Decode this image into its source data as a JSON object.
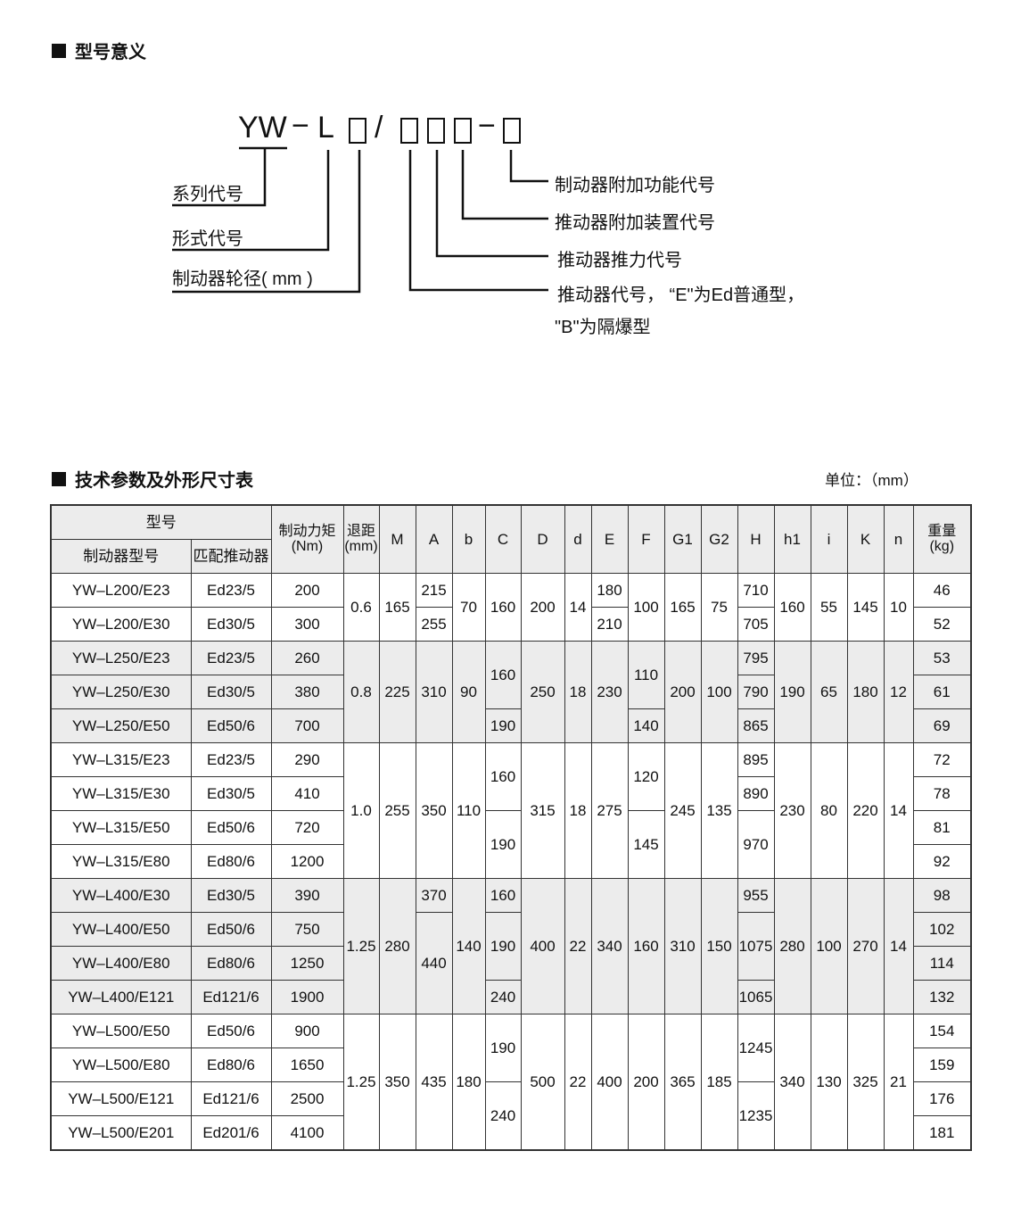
{
  "section1": {
    "title": "型号意义"
  },
  "diagram": {
    "code": {
      "series": "YW",
      "dash1": "−",
      "form": "L",
      "slash": "/",
      "dash2": "−"
    },
    "left_labels": [
      "系列代号",
      "形式代号",
      "制动器轮径( mm )"
    ],
    "right_labels": [
      "制动器附加功能代号",
      "推动器附加装置代号",
      "推动器推力代号",
      "推动器代号， “E\"为Ed普通型，",
      "\"B\"为隔爆型"
    ]
  },
  "section2": {
    "title": "技术参数及外形尺寸表",
    "unit": "单位：（mm）"
  },
  "table": {
    "header": {
      "model_group": "型号",
      "brake_model": "制动器型号",
      "actuator": "匹配推动器",
      "torque": "制动力矩\n(Nm)",
      "stroke": "退距\n(mm)",
      "M": "M",
      "A": "A",
      "b": "b",
      "C": "C",
      "D": "D",
      "d": "d",
      "E": "E",
      "F": "F",
      "G1": "G1",
      "G2": "G2",
      "H": "H",
      "h1": "h1",
      "i": "i",
      "K": "K",
      "n": "n",
      "weight": "重量\n(kg)"
    },
    "merged_columns": [
      "stroke",
      "M",
      "A",
      "b",
      "C",
      "D",
      "d",
      "E",
      "F",
      "G1",
      "G2",
      "H",
      "h1",
      "i",
      "K",
      "n"
    ],
    "groups": [
      {
        "rows": [
          {
            "model": "YW–L200/E23",
            "actuator": "Ed23/5",
            "torque": "200",
            "weight": "46"
          },
          {
            "model": "YW–L200/E30",
            "actuator": "Ed30/5",
            "torque": "300",
            "weight": "52"
          }
        ],
        "cells": {
          "stroke": [
            [
              "0.6",
              2
            ]
          ],
          "M": [
            [
              "165",
              2
            ]
          ],
          "A": [
            [
              "215",
              1
            ],
            [
              "255",
              1
            ]
          ],
          "b": [
            [
              "70",
              2
            ]
          ],
          "C": [
            [
              "160",
              2
            ]
          ],
          "D": [
            [
              "200",
              2
            ]
          ],
          "d": [
            [
              "14",
              2
            ]
          ],
          "E": [
            [
              "180",
              1
            ],
            [
              "210",
              1
            ]
          ],
          "F": [
            [
              "100",
              2
            ]
          ],
          "G1": [
            [
              "165",
              2
            ]
          ],
          "G2": [
            [
              "75",
              2
            ]
          ],
          "H": [
            [
              "710",
              1
            ],
            [
              "705",
              1
            ]
          ],
          "h1": [
            [
              "160",
              2
            ]
          ],
          "i": [
            [
              "55",
              2
            ]
          ],
          "K": [
            [
              "145",
              2
            ]
          ],
          "n": [
            [
              "10",
              2
            ]
          ]
        }
      },
      {
        "rows": [
          {
            "model": "YW–L250/E23",
            "actuator": "Ed23/5",
            "torque": "260",
            "weight": "53"
          },
          {
            "model": "YW–L250/E30",
            "actuator": "Ed30/5",
            "torque": "380",
            "weight": "61"
          },
          {
            "model": "YW–L250/E50",
            "actuator": "Ed50/6",
            "torque": "700",
            "weight": "69"
          }
        ],
        "cells": {
          "stroke": [
            [
              "0.8",
              3
            ]
          ],
          "M": [
            [
              "225",
              3
            ]
          ],
          "A": [
            [
              "310",
              3
            ]
          ],
          "b": [
            [
              "90",
              3
            ]
          ],
          "C": [
            [
              "160",
              2
            ],
            [
              "190",
              1
            ]
          ],
          "D": [
            [
              "250",
              3
            ]
          ],
          "d": [
            [
              "18",
              3
            ]
          ],
          "E": [
            [
              "230",
              3
            ]
          ],
          "F": [
            [
              "110",
              2
            ],
            [
              "140",
              1
            ]
          ],
          "G1": [
            [
              "200",
              3
            ]
          ],
          "G2": [
            [
              "100",
              3
            ]
          ],
          "H": [
            [
              "795",
              1
            ],
            [
              "790",
              1
            ],
            [
              "865",
              1
            ]
          ],
          "h1": [
            [
              "190",
              3
            ]
          ],
          "i": [
            [
              "65",
              3
            ]
          ],
          "K": [
            [
              "180",
              3
            ]
          ],
          "n": [
            [
              "12",
              3
            ]
          ]
        }
      },
      {
        "rows": [
          {
            "model": "YW–L315/E23",
            "actuator": "Ed23/5",
            "torque": "290",
            "weight": "72"
          },
          {
            "model": "YW–L315/E30",
            "actuator": "Ed30/5",
            "torque": "410",
            "weight": "78"
          },
          {
            "model": "YW–L315/E50",
            "actuator": "Ed50/6",
            "torque": "720",
            "weight": "81"
          },
          {
            "model": "YW–L315/E80",
            "actuator": "Ed80/6",
            "torque": "1200",
            "weight": "92"
          }
        ],
        "cells": {
          "stroke": [
            [
              "1.0",
              4
            ]
          ],
          "M": [
            [
              "255",
              4
            ]
          ],
          "A": [
            [
              "350",
              4
            ]
          ],
          "b": [
            [
              "110",
              4
            ]
          ],
          "C": [
            [
              "160",
              2
            ],
            [
              "190",
              2
            ]
          ],
          "D": [
            [
              "315",
              4
            ]
          ],
          "d": [
            [
              "18",
              4
            ]
          ],
          "E": [
            [
              "275",
              4
            ]
          ],
          "F": [
            [
              "120",
              2
            ],
            [
              "145",
              2
            ]
          ],
          "G1": [
            [
              "245",
              4
            ]
          ],
          "G2": [
            [
              "135",
              4
            ]
          ],
          "H": [
            [
              "895",
              1
            ],
            [
              "890",
              1
            ],
            [
              "970",
              2
            ]
          ],
          "h1": [
            [
              "230",
              4
            ]
          ],
          "i": [
            [
              "80",
              4
            ]
          ],
          "K": [
            [
              "220",
              4
            ]
          ],
          "n": [
            [
              "14",
              4
            ]
          ]
        }
      },
      {
        "rows": [
          {
            "model": "YW–L400/E30",
            "actuator": "Ed30/5",
            "torque": "390",
            "weight": "98"
          },
          {
            "model": "YW–L400/E50",
            "actuator": "Ed50/6",
            "torque": "750",
            "weight": "102"
          },
          {
            "model": "YW–L400/E80",
            "actuator": "Ed80/6",
            "torque": "1250",
            "weight": "114"
          },
          {
            "model": "YW–L400/E121",
            "actuator": "Ed121/6",
            "torque": "1900",
            "weight": "132"
          }
        ],
        "cells": {
          "stroke": [
            [
              "1.25",
              4
            ]
          ],
          "M": [
            [
              "280",
              4
            ]
          ],
          "A": [
            [
              "370",
              1
            ],
            [
              "440",
              3
            ]
          ],
          "b": [
            [
              "140",
              4
            ]
          ],
          "C": [
            [
              "160",
              1
            ],
            [
              "190",
              2
            ],
            [
              "240",
              1
            ]
          ],
          "D": [
            [
              "400",
              4
            ]
          ],
          "d": [
            [
              "22",
              4
            ]
          ],
          "E": [
            [
              "340",
              4
            ]
          ],
          "F": [
            [
              "160",
              4
            ]
          ],
          "G1": [
            [
              "310",
              4
            ]
          ],
          "G2": [
            [
              "150",
              4
            ]
          ],
          "H": [
            [
              "955",
              1
            ],
            [
              "1075",
              2
            ],
            [
              "1065",
              1
            ]
          ],
          "h1": [
            [
              "280",
              4
            ]
          ],
          "i": [
            [
              "100",
              4
            ]
          ],
          "K": [
            [
              "270",
              4
            ]
          ],
          "n": [
            [
              "14",
              4
            ]
          ]
        }
      },
      {
        "rows": [
          {
            "model": "YW–L500/E50",
            "actuator": "Ed50/6",
            "torque": "900",
            "weight": "154"
          },
          {
            "model": "YW–L500/E80",
            "actuator": "Ed80/6",
            "torque": "1650",
            "weight": "159"
          },
          {
            "model": "YW–L500/E121",
            "actuator": "Ed121/6",
            "torque": "2500",
            "weight": "176"
          },
          {
            "model": "YW–L500/E201",
            "actuator": "Ed201/6",
            "torque": "4100",
            "weight": "181"
          }
        ],
        "cells": {
          "stroke": [
            [
              "1.25",
              4
            ]
          ],
          "M": [
            [
              "350",
              4
            ]
          ],
          "A": [
            [
              "435",
              4
            ]
          ],
          "b": [
            [
              "180",
              4
            ]
          ],
          "C": [
            [
              "190",
              2
            ],
            [
              "240",
              2
            ]
          ],
          "D": [
            [
              "500",
              4
            ]
          ],
          "d": [
            [
              "22",
              4
            ]
          ],
          "E": [
            [
              "400",
              4
            ]
          ],
          "F": [
            [
              "200",
              4
            ]
          ],
          "G1": [
            [
              "365",
              4
            ]
          ],
          "G2": [
            [
              "185",
              4
            ]
          ],
          "H": [
            [
              "1245",
              2
            ],
            [
              "1235",
              2
            ]
          ],
          "h1": [
            [
              "340",
              4
            ]
          ],
          "i": [
            [
              "130",
              4
            ]
          ],
          "K": [
            [
              "325",
              4
            ]
          ],
          "n": [
            [
              "21",
              4
            ]
          ]
        }
      }
    ]
  }
}
